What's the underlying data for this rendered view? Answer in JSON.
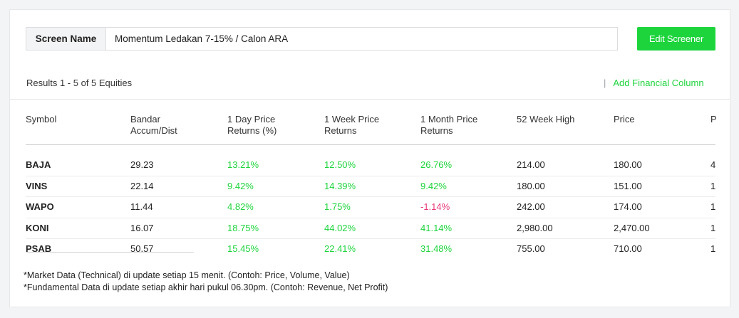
{
  "screen": {
    "label": "Screen Name",
    "value": "Momentum Ledakan 7-15% / Calon ARA"
  },
  "edit_button": "Edit Screener",
  "results_text": "Results 1 - 5 of 5 Equities",
  "add_column": {
    "icon": "plus-icon",
    "label": "Add Financial Column"
  },
  "columns": [
    {
      "line1": "Symbol",
      "line2": ""
    },
    {
      "line1": "Bandar",
      "line2": "Accum/Dist"
    },
    {
      "line1": "1 Day Price",
      "line2": "Returns (%)"
    },
    {
      "line1": "1 Week Price",
      "line2": "Returns"
    },
    {
      "line1": "1 Month Price",
      "line2": "Returns"
    },
    {
      "line1": "52 Week High",
      "line2": ""
    },
    {
      "line1": "Price",
      "line2": ""
    },
    {
      "line1": "P",
      "line2": ""
    }
  ],
  "rows": [
    {
      "symbol": "BAJA",
      "bandar": "29.23",
      "d1": "13.21%",
      "w1": "12.50%",
      "m1": "26.76%",
      "high52": "214.00",
      "price": "180.00",
      "p": "4"
    },
    {
      "symbol": "VINS",
      "bandar": "22.14",
      "d1": "9.42%",
      "w1": "14.39%",
      "m1": "9.42%",
      "high52": "180.00",
      "price": "151.00",
      "p": "1"
    },
    {
      "symbol": "WAPO",
      "bandar": "11.44",
      "d1": "4.82%",
      "w1": "1.75%",
      "m1": "-1.14%",
      "high52": "242.00",
      "price": "174.00",
      "p": "1"
    },
    {
      "symbol": "KONI",
      "bandar": "16.07",
      "d1": "18.75%",
      "w1": "44.02%",
      "m1": "41.14%",
      "high52": "2,980.00",
      "price": "2,470.00",
      "p": "1"
    },
    {
      "symbol": "PSAB",
      "bandar": "50.57",
      "d1": "15.45%",
      "w1": "22.41%",
      "m1": "31.48%",
      "high52": "755.00",
      "price": "710.00",
      "p": "1"
    }
  ],
  "notes": [
    "*Market Data (Technical) di update setiap 15 menit. (Contoh: Price, Volume, Value)",
    "*Fundamental Data di update setiap akhir hari pukul 06.30pm. (Contoh: Revenue, Net Profit)"
  ],
  "colors": {
    "accent": "#1dd43c",
    "negative": "#e8397a"
  }
}
